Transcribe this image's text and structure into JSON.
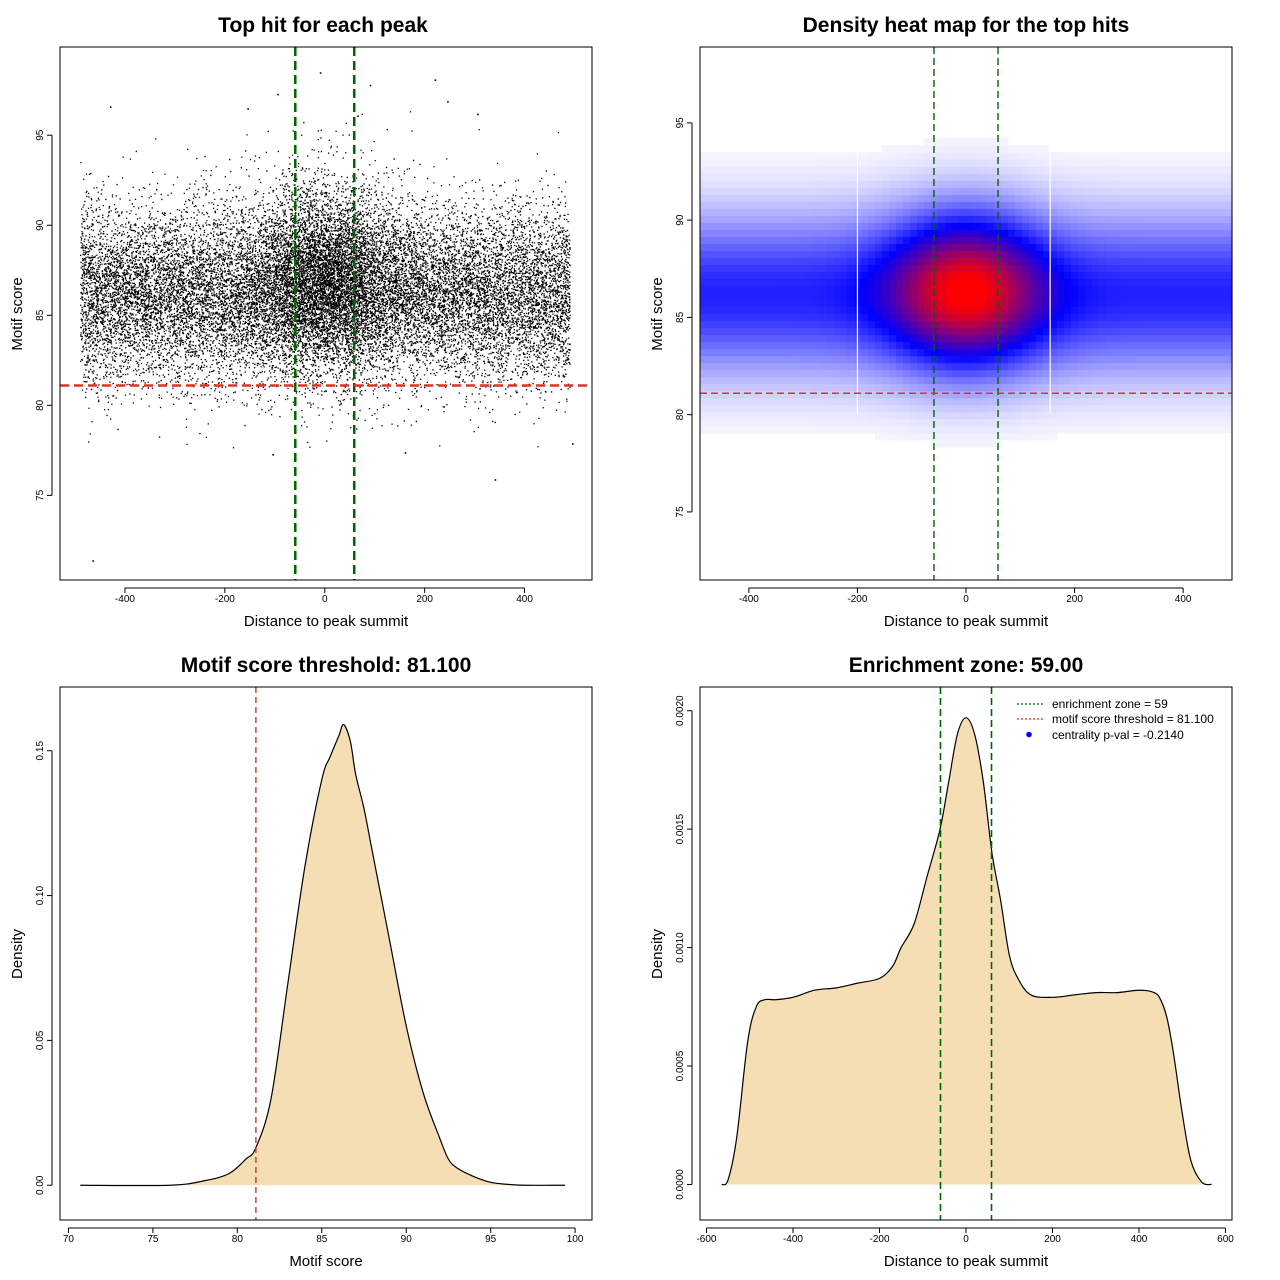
{
  "chart_data": [
    {
      "type": "scatter",
      "title": "Top hit for each peak",
      "xlabel": "Distance to peak summit",
      "ylabel": "Motif score",
      "xlim": [
        -530,
        535
      ],
      "ylim": [
        70.3,
        99.9
      ],
      "xticks": [
        -400,
        -200,
        0,
        200,
        400
      ],
      "yticks": [
        75,
        80,
        85,
        90,
        95
      ],
      "vlines": [
        -59,
        59
      ],
      "hline": 81.1,
      "point_model": {
        "n_points": 22000,
        "x_range": [
          -490,
          490
        ],
        "background": {
          "score_mean": 86.2,
          "score_sd": 2.4
        },
        "center": {
          "share": 0.22,
          "x_sd": 75,
          "score_mean": 87.2,
          "score_sd": 2.6
        }
      },
      "outliers": [
        {
          "x": -465,
          "y": 71.4
        },
        {
          "x": 340,
          "y": 75.9
        },
        {
          "x": -10,
          "y": 98.5
        },
        {
          "x": 220,
          "y": 98.1
        },
        {
          "x": 90,
          "y": 97.8
        },
        {
          "x": -95,
          "y": 97.3
        },
        {
          "x": 245,
          "y": 96.9
        },
        {
          "x": -430,
          "y": 96.6
        },
        {
          "x": -155,
          "y": 96.5
        },
        {
          "x": 65,
          "y": 96.1
        },
        {
          "x": 305,
          "y": 96.2
        },
        {
          "x": 495,
          "y": 77.9
        },
        {
          "x": -105,
          "y": 77.3
        },
        {
          "x": 160,
          "y": 77.4
        }
      ]
    },
    {
      "type": "heatmap",
      "title": "Density heat map for the top hits",
      "xlabel": "Distance to peak summit",
      "ylabel": "Motif score",
      "xlim": [
        -490,
        490
      ],
      "ylim": [
        71.5,
        98.9
      ],
      "xticks": [
        -400,
        -200,
        0,
        200,
        400
      ],
      "yticks": [
        75,
        80,
        85,
        90,
        95
      ],
      "vlines": [
        -59,
        59
      ],
      "hline": 81.1,
      "colormap": [
        "#ffffff",
        "#0000ff",
        "#ff0000"
      ],
      "density_model": {
        "background": {
          "weight": 0.46,
          "score_mean": 86.2,
          "score_sd": 2.5
        },
        "center": {
          "weight": 1.0,
          "x_mean": 0,
          "x_sd": 90,
          "score_mean": 86.4,
          "score_sd": 2.4
        }
      },
      "faint_vertical_lines": [
        -200,
        155
      ]
    },
    {
      "type": "area",
      "title": "Motif score threshold: 81.100",
      "xlabel": "Motif score",
      "ylabel": "Density",
      "xlim": [
        69.5,
        101
      ],
      "ylim": [
        -0.012,
        0.172
      ],
      "xticks": [
        70,
        75,
        80,
        85,
        90,
        95,
        100
      ],
      "yticks": [
        0.0,
        0.05,
        0.1,
        0.15
      ],
      "ytick_labels": [
        "0.00",
        "0.05",
        "0.10",
        "0.15"
      ],
      "vline": 81.1,
      "fill": "#f5deb3",
      "x": [
        70.7,
        76,
        78,
        79.5,
        80.5,
        81.1,
        82,
        83,
        84,
        85,
        85.5,
        86,
        86.3,
        86.7,
        87,
        87.5,
        88,
        89,
        90,
        91,
        92,
        92.5,
        93,
        94,
        95,
        96,
        97,
        99.4
      ],
      "y": [
        0.0,
        0.0,
        0.0015,
        0.004,
        0.009,
        0.013,
        0.03,
        0.07,
        0.11,
        0.14,
        0.148,
        0.155,
        0.159,
        0.153,
        0.142,
        0.13,
        0.115,
        0.085,
        0.055,
        0.032,
        0.016,
        0.009,
        0.006,
        0.003,
        0.001,
        0.0003,
        0.0,
        0.0
      ]
    },
    {
      "type": "area",
      "title": "Enrichment zone: 59.00",
      "xlabel": "Distance to peak summit",
      "ylabel": "Density",
      "xlim": [
        -615,
        615
      ],
      "ylim": [
        -0.00015,
        0.0021
      ],
      "xticks": [
        -600,
        -400,
        -200,
        0,
        200,
        400,
        600
      ],
      "yticks": [
        0,
        0.0005,
        0.001,
        0.0015,
        0.002
      ],
      "ytick_labels": [
        "0.0000",
        "0.0005",
        "0.0010",
        "0.0015",
        "0.0020"
      ],
      "vlines": [
        -59,
        59
      ],
      "fill": "#f5deb3",
      "x": [
        -565,
        -550,
        -530,
        -505,
        -485,
        -465,
        -440,
        -400,
        -350,
        -300,
        -250,
        -200,
        -170,
        -150,
        -120,
        -90,
        -60,
        -40,
        -20,
        0,
        20,
        40,
        60,
        80,
        100,
        120,
        150,
        200,
        250,
        300,
        350,
        400,
        435,
        450,
        465,
        480,
        500,
        520,
        545,
        568
      ],
      "y": [
        0.0,
        2e-05,
        0.0002,
        0.0006,
        0.00075,
        0.00078,
        0.00078,
        0.00079,
        0.00082,
        0.00083,
        0.00085,
        0.00087,
        0.00092,
        0.001,
        0.0011,
        0.0013,
        0.0015,
        0.0017,
        0.0019,
        0.00197,
        0.0019,
        0.0017,
        0.0014,
        0.0012,
        0.00097,
        0.00087,
        0.0008,
        0.00079,
        0.0008,
        0.00081,
        0.00081,
        0.00082,
        0.00081,
        0.00078,
        0.0007,
        0.00055,
        0.0003,
        0.0001,
        1e-05,
        0.0
      ],
      "legend": {
        "placement": "top-right",
        "items": [
          {
            "label": "enrichment zone = 59",
            "style": "dotted",
            "color": "#006400"
          },
          {
            "label": "motif score threshold = 81.100",
            "style": "dotted",
            "color": "#d62728"
          },
          {
            "label": "centrality p-val = -0.2140",
            "style": "point",
            "color": "#0000ff"
          }
        ]
      }
    }
  ]
}
